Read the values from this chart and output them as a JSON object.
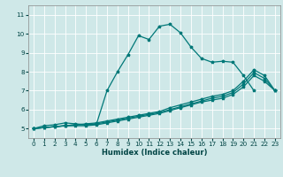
{
  "xlabel": "Humidex (Indice chaleur)",
  "background_color": "#cfe8e8",
  "grid_color": "#ffffff",
  "line_color": "#007878",
  "xlim": [
    -0.5,
    23.5
  ],
  "ylim": [
    4.5,
    11.5
  ],
  "xticks": [
    0,
    1,
    2,
    3,
    4,
    5,
    6,
    7,
    8,
    9,
    10,
    11,
    12,
    13,
    14,
    15,
    16,
    17,
    18,
    19,
    20,
    21,
    22,
    23
  ],
  "yticks": [
    5,
    6,
    7,
    8,
    9,
    10,
    11
  ],
  "series": [
    {
      "x": [
        0,
        1,
        2,
        3,
        4,
        5,
        6,
        7,
        8,
        9,
        10,
        11,
        12,
        13,
        14,
        15,
        16,
        17,
        18,
        19,
        20,
        21
      ],
      "y": [
        5.0,
        5.15,
        5.2,
        5.3,
        5.25,
        5.2,
        5.25,
        7.0,
        8.0,
        8.9,
        9.9,
        9.7,
        10.4,
        10.5,
        10.05,
        9.3,
        8.7,
        8.5,
        8.55,
        8.5,
        7.8,
        7.0
      ]
    },
    {
      "x": [
        0,
        1,
        2,
        3,
        4,
        5,
        6,
        7,
        8,
        9,
        10,
        11,
        12,
        13,
        14,
        15,
        16,
        17,
        18,
        19,
        20,
        21,
        22,
        23
      ],
      "y": [
        5.0,
        5.05,
        5.1,
        5.15,
        5.2,
        5.25,
        5.3,
        5.4,
        5.5,
        5.6,
        5.7,
        5.8,
        5.9,
        6.1,
        6.25,
        6.4,
        6.55,
        6.7,
        6.8,
        7.0,
        7.5,
        8.1,
        7.8,
        7.0
      ]
    },
    {
      "x": [
        0,
        1,
        2,
        3,
        4,
        5,
        6,
        7,
        8,
        9,
        10,
        11,
        12,
        13,
        14,
        15,
        16,
        17,
        18,
        19,
        20,
        21,
        22,
        23
      ],
      "y": [
        5.0,
        5.05,
        5.1,
        5.15,
        5.2,
        5.2,
        5.25,
        5.35,
        5.45,
        5.55,
        5.65,
        5.75,
        5.85,
        6.0,
        6.15,
        6.3,
        6.45,
        6.6,
        6.7,
        6.9,
        7.35,
        7.95,
        7.65,
        7.0
      ]
    },
    {
      "x": [
        0,
        1,
        2,
        3,
        4,
        5,
        6,
        7,
        8,
        9,
        10,
        11,
        12,
        13,
        14,
        15,
        16,
        17,
        18,
        19,
        20,
        21,
        22,
        23
      ],
      "y": [
        5.0,
        5.05,
        5.1,
        5.15,
        5.15,
        5.15,
        5.2,
        5.3,
        5.4,
        5.5,
        5.6,
        5.7,
        5.8,
        5.95,
        6.1,
        6.25,
        6.4,
        6.5,
        6.6,
        6.8,
        7.2,
        7.8,
        7.5,
        7.0
      ]
    }
  ]
}
